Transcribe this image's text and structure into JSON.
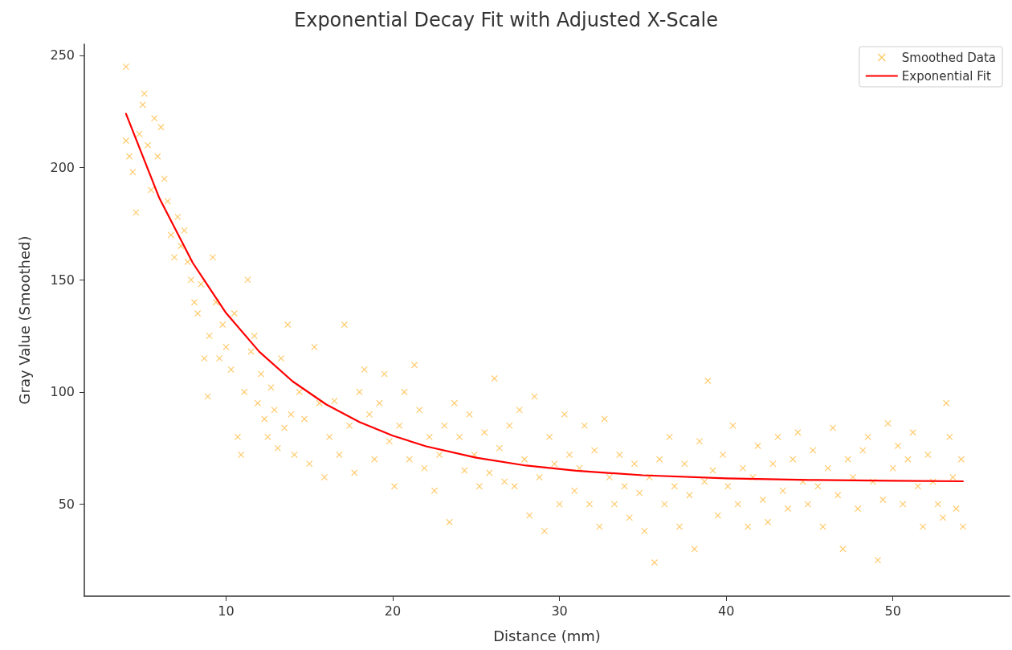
{
  "chart_data": {
    "type": "scatter",
    "title": "Exponential Decay Fit with Adjusted X-Scale",
    "xlabel": "Distance (mm)",
    "ylabel": "Gray Value (Smoothed)",
    "xlim": [
      1.5,
      57
    ],
    "ylim": [
      9,
      255
    ],
    "xticks": [
      10,
      20,
      30,
      40,
      50
    ],
    "yticks": [
      50,
      100,
      150,
      200,
      250
    ],
    "grid": false,
    "legend": "top right",
    "series": [
      {
        "name": "Smoothed Data",
        "marker": "cross",
        "color": "#ffa500",
        "x": [
          4.0,
          4.0,
          4.2,
          4.4,
          4.6,
          4.8,
          5.0,
          5.1,
          5.3,
          5.5,
          5.7,
          5.9,
          6.1,
          6.3,
          6.5,
          6.7,
          6.9,
          7.1,
          7.3,
          7.5,
          7.7,
          7.9,
          8.1,
          8.3,
          8.5,
          8.7,
          8.9,
          9.0,
          9.2,
          9.4,
          9.6,
          9.8,
          10.0,
          10.3,
          10.5,
          10.7,
          10.9,
          11.1,
          11.3,
          11.5,
          11.7,
          11.9,
          12.1,
          12.3,
          12.5,
          12.7,
          12.9,
          13.1,
          13.3,
          13.5,
          13.7,
          13.9,
          14.1,
          14.4,
          14.7,
          15.0,
          15.3,
          15.6,
          15.9,
          16.2,
          16.5,
          16.8,
          17.1,
          17.4,
          17.7,
          18.0,
          18.3,
          18.6,
          18.9,
          19.2,
          19.5,
          19.8,
          20.1,
          20.4,
          20.7,
          21.0,
          21.3,
          21.6,
          21.9,
          22.2,
          22.5,
          22.8,
          23.1,
          23.4,
          23.7,
          24.0,
          24.3,
          24.6,
          24.9,
          25.2,
          25.5,
          25.8,
          26.1,
          26.4,
          26.7,
          27.0,
          27.3,
          27.6,
          27.9,
          28.2,
          28.5,
          28.8,
          29.1,
          29.4,
          29.7,
          30.0,
          30.3,
          30.6,
          30.9,
          31.2,
          31.5,
          31.8,
          32.1,
          32.4,
          32.7,
          33.0,
          33.3,
          33.6,
          33.9,
          34.2,
          34.5,
          34.8,
          35.1,
          35.4,
          35.7,
          36.0,
          36.3,
          36.6,
          36.9,
          37.2,
          37.5,
          37.8,
          38.1,
          38.4,
          38.7,
          38.9,
          39.2,
          39.5,
          39.8,
          40.1,
          40.4,
          40.7,
          41.0,
          41.3,
          41.6,
          41.9,
          42.2,
          42.5,
          42.8,
          43.1,
          43.4,
          43.7,
          44.0,
          44.3,
          44.6,
          44.9,
          45.2,
          45.5,
          45.8,
          46.1,
          46.4,
          46.7,
          47.0,
          47.3,
          47.6,
          47.9,
          48.2,
          48.5,
          48.8,
          49.1,
          49.4,
          49.7,
          50.0,
          50.3,
          50.6,
          50.9,
          51.2,
          51.5,
          51.8,
          52.1,
          52.4,
          52.7,
          53.0,
          53.2,
          53.4,
          53.6,
          53.8,
          54.1,
          54.2
        ],
        "values": [
          245,
          212,
          205,
          198,
          180,
          215,
          228,
          233,
          210,
          190,
          222,
          205,
          218,
          195,
          185,
          170,
          160,
          178,
          165,
          172,
          158,
          150,
          140,
          135,
          148,
          115,
          98,
          125,
          160,
          140,
          115,
          130,
          120,
          110,
          135,
          80,
          72,
          100,
          150,
          118,
          125,
          95,
          108,
          88,
          80,
          102,
          92,
          75,
          115,
          84,
          130,
          90,
          72,
          100,
          88,
          68,
          120,
          95,
          62,
          80,
          96,
          72,
          130,
          85,
          64,
          100,
          110,
          90,
          70,
          95,
          108,
          78,
          58,
          85,
          100,
          70,
          112,
          92,
          66,
          80,
          56,
          72,
          85,
          42,
          95,
          80,
          65,
          90,
          72,
          58,
          82,
          64,
          106,
          75,
          60,
          85,
          58,
          92,
          70,
          45,
          98,
          62,
          38,
          80,
          68,
          50,
          90,
          72,
          56,
          66,
          85,
          50,
          74,
          40,
          88,
          62,
          50,
          72,
          58,
          44,
          68,
          55,
          38,
          62,
          24,
          70,
          50,
          80,
          58,
          40,
          68,
          54,
          30,
          78,
          60,
          105,
          65,
          45,
          72,
          58,
          85,
          50,
          66,
          40,
          62,
          76,
          52,
          42,
          68,
          80,
          56,
          48,
          70,
          82,
          60,
          50,
          74,
          58,
          40,
          66,
          84,
          54,
          30,
          70,
          62,
          48,
          74,
          80,
          60,
          25,
          52,
          86,
          66,
          76,
          50,
          70,
          82,
          58,
          40,
          72,
          60,
          50,
          44,
          95,
          80,
          62,
          48,
          70,
          40
        ]
      },
      {
        "name": "Exponential Fit",
        "type": "line",
        "marker": "none",
        "line_style": "solid",
        "color": "#ff0000",
        "x": [
          4,
          6,
          8,
          10,
          12,
          14,
          16,
          18,
          20,
          22,
          25,
          28,
          31,
          35,
          40,
          45,
          50,
          54.2
        ],
        "values": [
          224,
          186.4,
          157.6,
          135.2,
          117.9,
          104.7,
          94.5,
          86.6,
          80.5,
          75.8,
          70.7,
          67.2,
          64.9,
          62.9,
          61.5,
          60.8,
          60.4,
          60.2
        ]
      }
    ]
  }
}
